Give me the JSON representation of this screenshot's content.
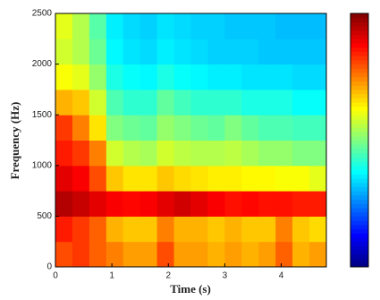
{
  "chart_data": {
    "type": "heatmap",
    "xlabel": "Time (s)",
    "ylabel": "Frequency (Hz)",
    "xlim": [
      0,
      4.8
    ],
    "ylim": [
      0,
      2500
    ],
    "xticks": [
      0,
      1,
      2,
      3,
      4
    ],
    "yticks": [
      0,
      500,
      1000,
      1500,
      2000,
      2500
    ],
    "colormap": "jet",
    "zlim": [
      0,
      1
    ],
    "xbins": [
      0,
      0.3,
      0.6,
      0.9,
      1.2,
      1.5,
      1.8,
      2.1,
      2.4,
      2.7,
      3.0,
      3.3,
      3.6,
      3.9,
      4.2,
      4.5,
      4.8
    ],
    "ybins": [
      0,
      250,
      500,
      750,
      1000,
      1250,
      1500,
      1750,
      2000,
      2250,
      2500
    ],
    "z": [
      [
        0.8,
        0.82,
        0.78,
        0.75,
        0.72,
        0.72,
        0.8,
        0.72,
        0.72,
        0.7,
        0.72,
        0.7,
        0.72,
        0.78,
        0.7,
        0.72
      ],
      [
        0.85,
        0.82,
        0.78,
        0.7,
        0.68,
        0.68,
        0.75,
        0.7,
        0.7,
        0.68,
        0.7,
        0.68,
        0.68,
        0.75,
        0.68,
        0.66
      ],
      [
        0.95,
        0.93,
        0.9,
        0.88,
        0.87,
        0.88,
        0.9,
        0.92,
        0.9,
        0.88,
        0.86,
        0.87,
        0.86,
        0.86,
        0.85,
        0.85
      ],
      [
        0.9,
        0.88,
        0.8,
        0.68,
        0.65,
        0.65,
        0.68,
        0.66,
        0.65,
        0.64,
        0.64,
        0.63,
        0.63,
        0.62,
        0.62,
        0.6
      ],
      [
        0.85,
        0.82,
        0.75,
        0.58,
        0.55,
        0.54,
        0.58,
        0.56,
        0.55,
        0.55,
        0.56,
        0.54,
        0.52,
        0.52,
        0.5,
        0.5
      ],
      [
        0.82,
        0.75,
        0.65,
        0.5,
        0.48,
        0.47,
        0.52,
        0.5,
        0.48,
        0.47,
        0.5,
        0.47,
        0.45,
        0.45,
        0.44,
        0.44
      ],
      [
        0.7,
        0.68,
        0.58,
        0.45,
        0.42,
        0.42,
        0.47,
        0.44,
        0.42,
        0.42,
        0.42,
        0.4,
        0.4,
        0.4,
        0.38,
        0.38
      ],
      [
        0.62,
        0.6,
        0.52,
        0.4,
        0.38,
        0.37,
        0.4,
        0.38,
        0.37,
        0.36,
        0.36,
        0.35,
        0.35,
        0.35,
        0.34,
        0.34
      ],
      [
        0.58,
        0.55,
        0.48,
        0.37,
        0.35,
        0.34,
        0.36,
        0.35,
        0.34,
        0.33,
        0.33,
        0.33,
        0.32,
        0.32,
        0.32,
        0.32
      ],
      [
        0.6,
        0.55,
        0.46,
        0.36,
        0.34,
        0.33,
        0.35,
        0.34,
        0.33,
        0.33,
        0.32,
        0.32,
        0.32,
        0.31,
        0.31,
        0.31
      ]
    ]
  }
}
